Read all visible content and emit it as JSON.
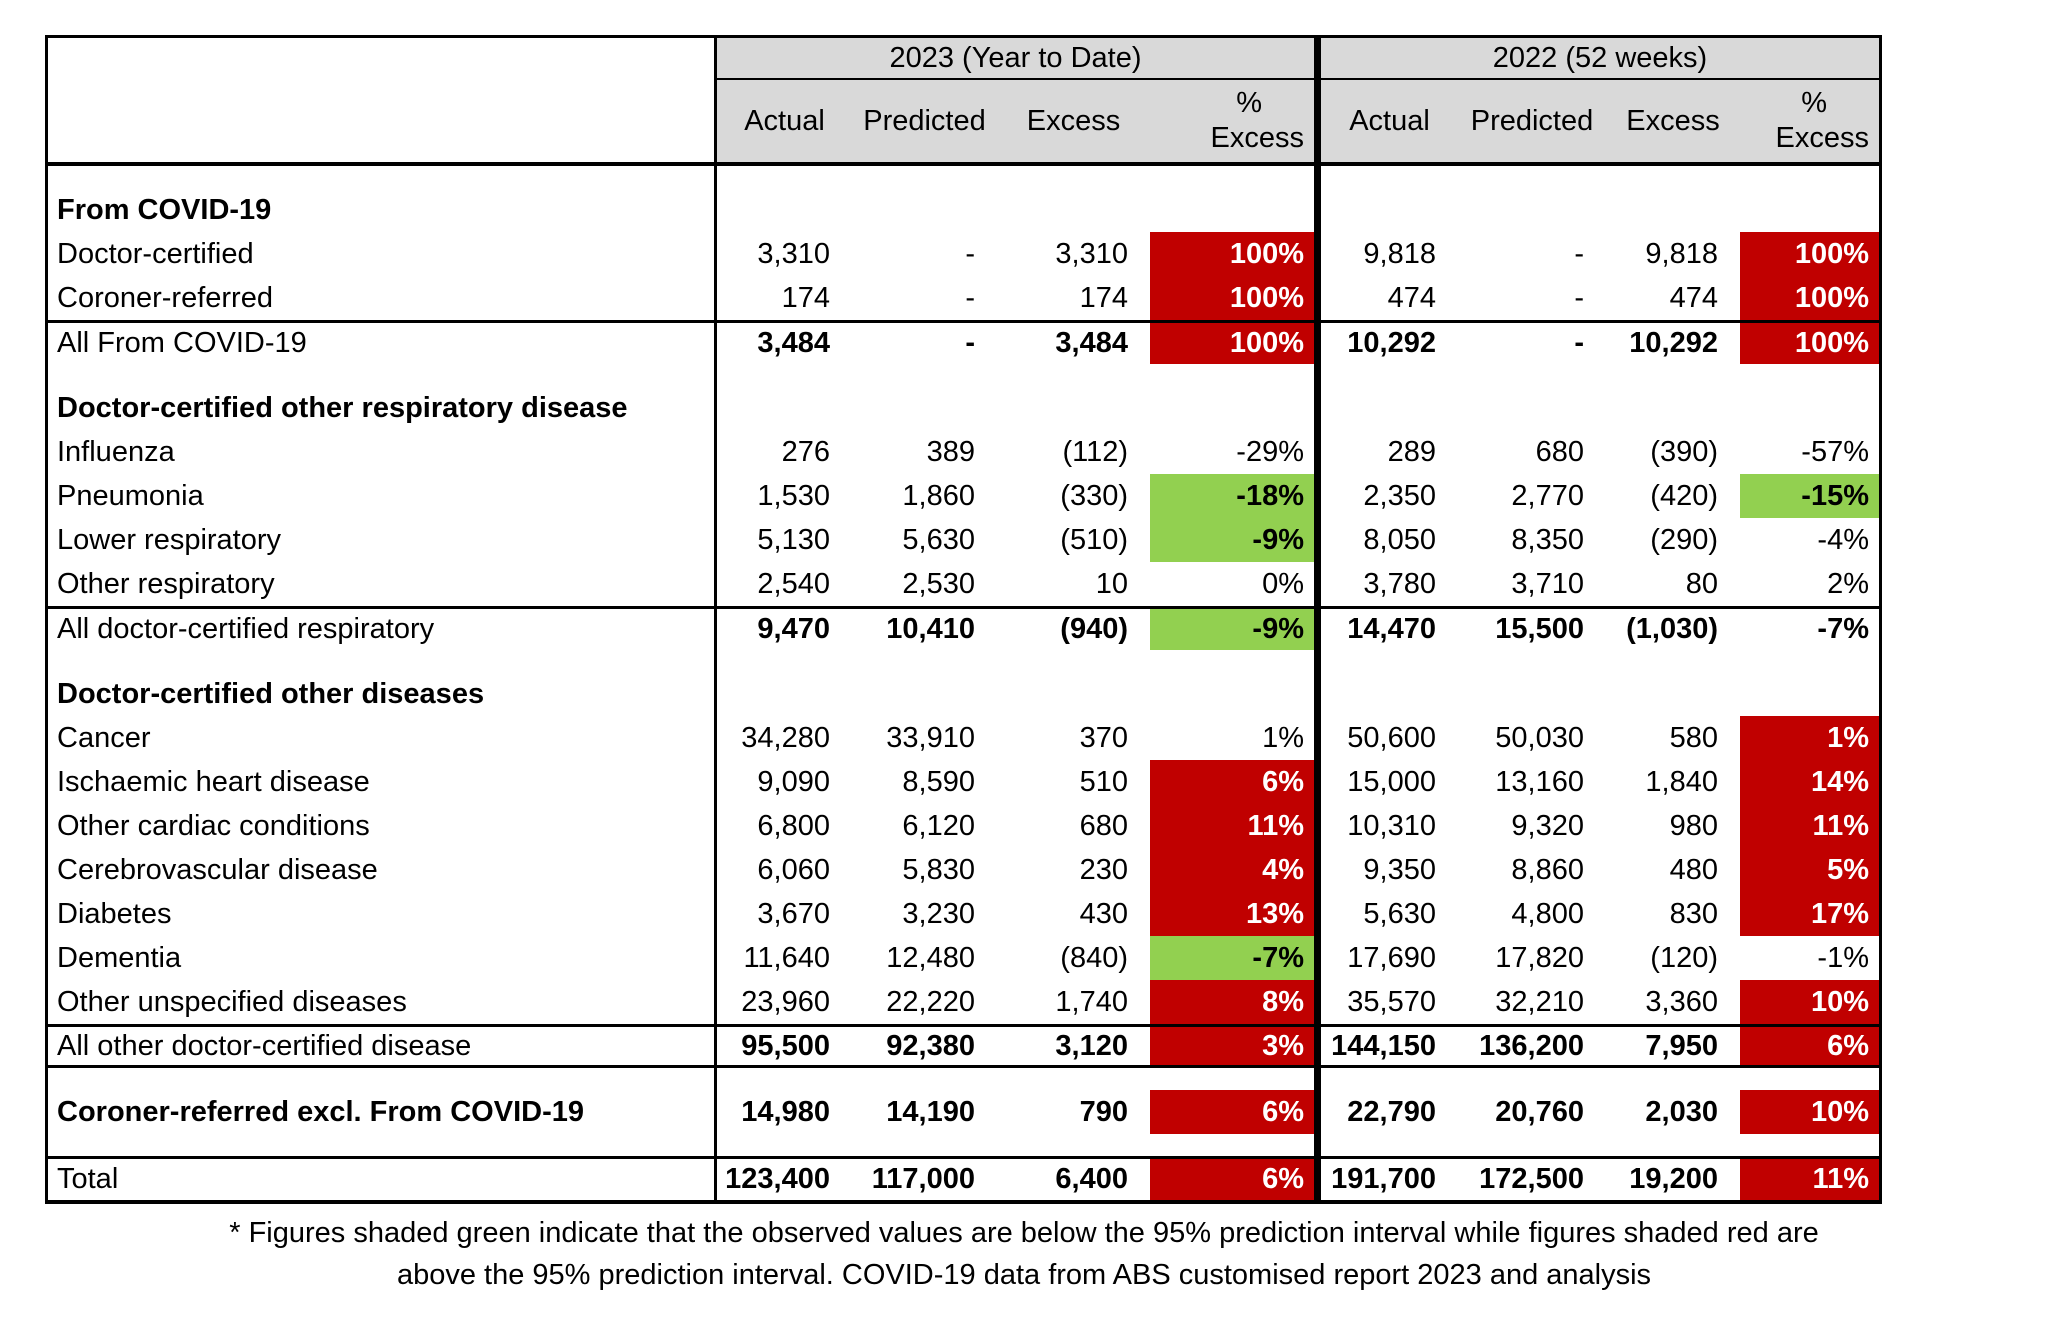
{
  "colors": {
    "red": "#c00000",
    "green": "#92d050",
    "header_bg": "#d9d9d9",
    "border": "#000000"
  },
  "header": {
    "groups": [
      {
        "label": "2023 (Year to Date)"
      },
      {
        "label": "2022 (52 weeks)"
      }
    ],
    "columns": [
      "Actual",
      "Predicted",
      "Excess"
    ],
    "pct_column": {
      "line1": "%",
      "line2": "Excess"
    }
  },
  "rows": [
    {
      "kind": "spacer"
    },
    {
      "kind": "section",
      "label": "From COVID-19"
    },
    {
      "kind": "data",
      "label": "Doctor-certified",
      "y2023": [
        "3,310",
        "-",
        "3,310",
        "100%"
      ],
      "hl2023": "red",
      "y2022": [
        "9,818",
        "-",
        "9,818",
        "100%"
      ],
      "hl2022": "red"
    },
    {
      "kind": "data",
      "label": "Coroner-referred",
      "y2023": [
        "174",
        "-",
        "174",
        "100%"
      ],
      "hl2023": "red",
      "y2022": [
        "474",
        "-",
        "474",
        "100%"
      ],
      "hl2022": "red"
    },
    {
      "kind": "total",
      "label": "All From COVID-19",
      "rule_top": true,
      "y2023": [
        "3,484",
        "-",
        "3,484",
        "100%"
      ],
      "hl2023": "red",
      "y2022": [
        "10,292",
        "-",
        "10,292",
        "100%"
      ],
      "hl2022": "red"
    },
    {
      "kind": "spacer"
    },
    {
      "kind": "section",
      "label": "Doctor-certified other respiratory disease"
    },
    {
      "kind": "data",
      "label": "Influenza",
      "y2023": [
        "276",
        "389",
        "(112)",
        "-29%"
      ],
      "hl2023": "none",
      "y2022": [
        "289",
        "680",
        "(390)",
        "-57%"
      ],
      "hl2022": "none"
    },
    {
      "kind": "data",
      "label": "Pneumonia",
      "y2023": [
        "1,530",
        "1,860",
        "(330)",
        "-18%"
      ],
      "hl2023": "green",
      "y2022": [
        "2,350",
        "2,770",
        "(420)",
        "-15%"
      ],
      "hl2022": "green"
    },
    {
      "kind": "data",
      "label": "Lower respiratory",
      "y2023": [
        "5,130",
        "5,630",
        "(510)",
        "-9%"
      ],
      "hl2023": "green",
      "y2022": [
        "8,050",
        "8,350",
        "(290)",
        "-4%"
      ],
      "hl2022": "none"
    },
    {
      "kind": "data",
      "label": "Other respiratory",
      "y2023": [
        "2,540",
        "2,530",
        "10",
        "0%"
      ],
      "hl2023": "none",
      "y2022": [
        "3,780",
        "3,710",
        "80",
        "2%"
      ],
      "hl2022": "none"
    },
    {
      "kind": "total",
      "label": "All doctor-certified respiratory",
      "rule_top": true,
      "y2023": [
        "9,470",
        "10,410",
        "(940)",
        "-9%"
      ],
      "hl2023": "green",
      "y2022": [
        "14,470",
        "15,500",
        "(1,030)",
        "-7%"
      ],
      "hl2022": "none"
    },
    {
      "kind": "spacer"
    },
    {
      "kind": "section",
      "label": "Doctor-certified other diseases"
    },
    {
      "kind": "data",
      "label": "Cancer",
      "y2023": [
        "34,280",
        "33,910",
        "370",
        "1%"
      ],
      "hl2023": "none",
      "y2022": [
        "50,600",
        "50,030",
        "580",
        "1%"
      ],
      "hl2022": "red"
    },
    {
      "kind": "data",
      "label": "Ischaemic heart disease",
      "y2023": [
        "9,090",
        "8,590",
        "510",
        "6%"
      ],
      "hl2023": "red",
      "y2022": [
        "15,000",
        "13,160",
        "1,840",
        "14%"
      ],
      "hl2022": "red"
    },
    {
      "kind": "data",
      "label": "Other cardiac conditions",
      "y2023": [
        "6,800",
        "6,120",
        "680",
        "11%"
      ],
      "hl2023": "red",
      "y2022": [
        "10,310",
        "9,320",
        "980",
        "11%"
      ],
      "hl2022": "red"
    },
    {
      "kind": "data",
      "label": "Cerebrovascular disease",
      "y2023": [
        "6,060",
        "5,830",
        "230",
        "4%"
      ],
      "hl2023": "red",
      "y2022": [
        "9,350",
        "8,860",
        "480",
        "5%"
      ],
      "hl2022": "red"
    },
    {
      "kind": "data",
      "label": "Diabetes",
      "y2023": [
        "3,670",
        "3,230",
        "430",
        "13%"
      ],
      "hl2023": "red",
      "y2022": [
        "5,630",
        "4,800",
        "830",
        "17%"
      ],
      "hl2022": "red"
    },
    {
      "kind": "data",
      "label": "Dementia",
      "y2023": [
        "11,640",
        "12,480",
        "(840)",
        "-7%"
      ],
      "hl2023": "green",
      "y2022": [
        "17,690",
        "17,820",
        "(120)",
        "-1%"
      ],
      "hl2022": "none"
    },
    {
      "kind": "data",
      "label": "Other unspecified diseases",
      "y2023": [
        "23,960",
        "22,220",
        "1,740",
        "8%"
      ],
      "hl2023": "red",
      "y2022": [
        "35,570",
        "32,210",
        "3,360",
        "10%"
      ],
      "hl2022": "red"
    },
    {
      "kind": "total",
      "label": "All other doctor-certified disease",
      "rule_top": true,
      "rule_bottom": true,
      "y2023": [
        "95,500",
        "92,380",
        "3,120",
        "3%"
      ],
      "hl2023": "red",
      "y2022": [
        "144,150",
        "136,200",
        "7,950",
        "6%"
      ],
      "hl2022": "red"
    },
    {
      "kind": "spacer"
    },
    {
      "kind": "total",
      "label": "Coroner-referred excl. From COVID-19",
      "bold_label": true,
      "y2023": [
        "14,980",
        "14,190",
        "790",
        "6%"
      ],
      "hl2023": "red",
      "y2022": [
        "22,790",
        "20,760",
        "2,030",
        "10%"
      ],
      "hl2022": "red"
    },
    {
      "kind": "spacer",
      "small": true
    },
    {
      "kind": "total",
      "label": "Total",
      "rule_top": true,
      "y2023": [
        "123,400",
        "117,000",
        "6,400",
        "6%"
      ],
      "hl2023": "red",
      "y2022": [
        "191,700",
        "172,500",
        "19,200",
        "11%"
      ],
      "hl2022": "red"
    }
  ],
  "footnote": {
    "line1": "* Figures shaded green indicate that the observed values are below the 95% prediction interval while figures shaded red are",
    "line2": "above the 95% prediction interval.  COVID-19 data from ABS customised report 2023 and analysis"
  }
}
